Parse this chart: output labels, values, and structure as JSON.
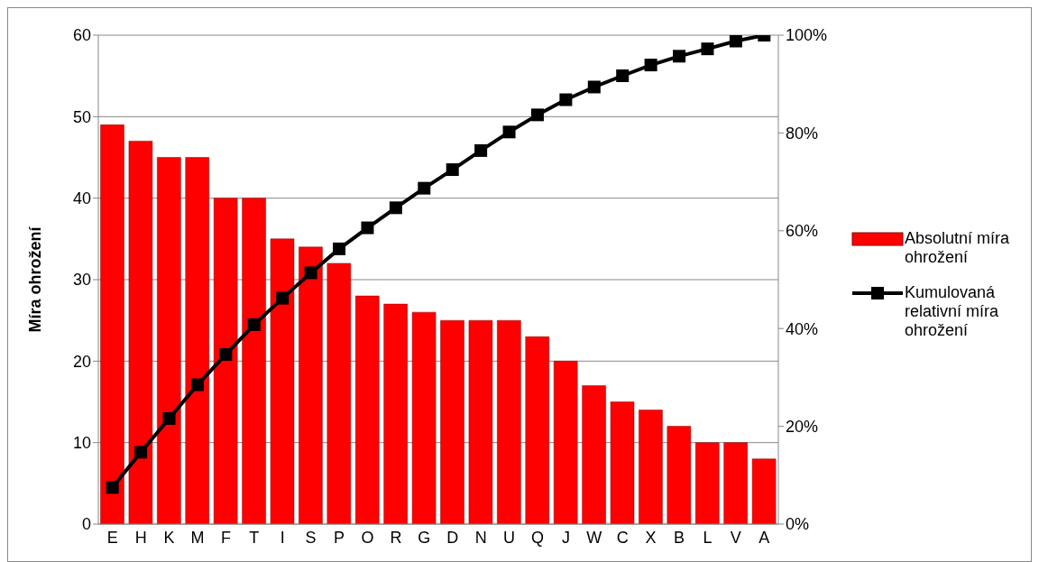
{
  "chart_data": {
    "type": "bar",
    "categories": [
      "E",
      "H",
      "K",
      "M",
      "F",
      "T",
      "I",
      "S",
      "P",
      "O",
      "R",
      "G",
      "D",
      "N",
      "U",
      "Q",
      "J",
      "W",
      "C",
      "X",
      "B",
      "L",
      "V",
      "A"
    ],
    "ylabel": "Míra ohrožení",
    "ylim": [
      0,
      60
    ],
    "yticks": [
      0,
      10,
      20,
      30,
      40,
      50,
      60
    ],
    "y2lim": [
      0,
      100
    ],
    "y2ticks": [
      {
        "value": 0,
        "label": "0%"
      },
      {
        "value": 20,
        "label": "20%"
      },
      {
        "value": 40,
        "label": "40%"
      },
      {
        "value": 60,
        "label": "60%"
      },
      {
        "value": 80,
        "label": "80%"
      },
      {
        "value": 100,
        "label": "100%"
      }
    ],
    "grid": "y",
    "legend": "right",
    "series": [
      {
        "name": "Absolutní míra ohrožení",
        "color": "#ff0000",
        "values": [
          49,
          47,
          45,
          45,
          40,
          40,
          35,
          34,
          32,
          28,
          27,
          26,
          25,
          25,
          25,
          23,
          20,
          17,
          15,
          14,
          12,
          10,
          10,
          8
        ]
      },
      {
        "name": "Kumulovaná relativní míra ohrožení",
        "type": "line",
        "axis": "y2",
        "color": "#000000",
        "marker": "square",
        "line_style": "solid",
        "values": [
          7.5,
          14.7,
          21.6,
          28.5,
          34.7,
          40.8,
          46.2,
          51.4,
          56.3,
          60.6,
          64.7,
          68.7,
          72.5,
          76.4,
          80.2,
          83.7,
          86.8,
          89.4,
          91.7,
          93.9,
          95.7,
          97.2,
          98.8,
          100
        ]
      }
    ]
  }
}
